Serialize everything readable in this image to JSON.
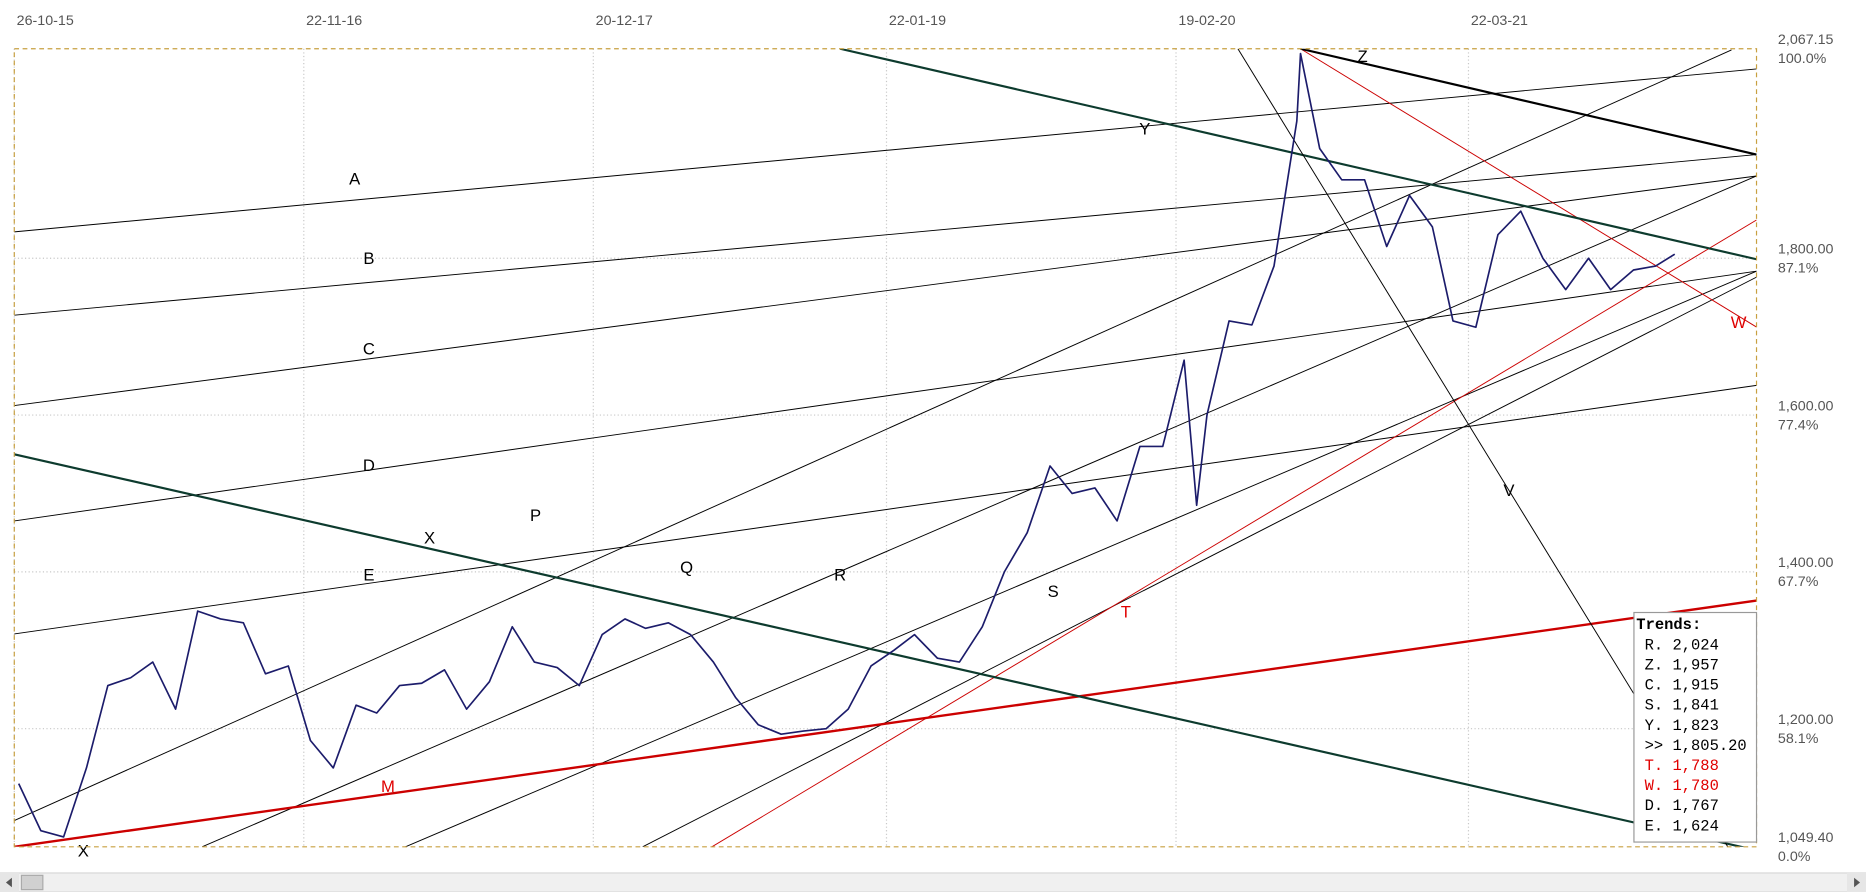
{
  "chart_data": {
    "type": "line",
    "xlim": [
      "26-10-15",
      "17-04-22"
    ],
    "xticks": [
      "26-10-15",
      "22-11-16",
      "20-12-17",
      "22-01-19",
      "19-02-20",
      "22-03-21"
    ],
    "ylim": [
      1049.4,
      2067.15
    ],
    "yticks": [
      {
        "value": 2067.15,
        "label": "2,067.15"
      },
      {
        "value": 1800,
        "label": "1,800.00"
      },
      {
        "value": 1600,
        "label": "1,600.00"
      },
      {
        "value": 1400,
        "label": "1,400.00"
      },
      {
        "value": 1200,
        "label": "1,200.00"
      },
      {
        "value": 1049.4,
        "label": "1,049.40"
      }
    ],
    "ytick_percents": [
      "100.0%",
      "87.1%",
      "77.4%",
      "67.7%",
      "58.1%",
      "0.0%"
    ],
    "grid": true,
    "x": [
      "01-11-15",
      "01-12-15",
      "01-01-16",
      "01-02-16",
      "01-03-16",
      "01-04-16",
      "01-05-16",
      "01-06-16",
      "01-07-16",
      "01-08-16",
      "01-09-16",
      "01-10-16",
      "01-11-16",
      "01-12-16",
      "01-01-17",
      "01-02-17",
      "01-03-17",
      "01-04-17",
      "01-05-17",
      "01-06-17",
      "01-07-17",
      "01-08-17",
      "01-09-17",
      "01-10-17",
      "01-11-17",
      "01-12-17",
      "01-01-18",
      "01-02-18",
      "01-03-18",
      "01-04-18",
      "01-05-18",
      "01-06-18",
      "01-07-18",
      "01-08-18",
      "01-09-18",
      "01-10-18",
      "01-11-18",
      "01-12-18",
      "01-01-19",
      "01-02-19",
      "01-03-19",
      "01-04-19",
      "01-05-19",
      "01-06-19",
      "01-07-19",
      "01-08-19",
      "01-09-19",
      "01-10-19",
      "01-11-19",
      "01-12-19",
      "01-01-20",
      "01-02-20",
      "01-03-20",
      "18-03-20",
      "01-04-20",
      "01-05-20",
      "01-06-20",
      "01-07-20",
      "01-08-20",
      "06-08-20",
      "01-09-20",
      "01-10-20",
      "01-11-20",
      "01-12-20",
      "01-01-21",
      "01-02-21",
      "01-03-21",
      "01-04-21",
      "01-05-21",
      "01-06-21",
      "01-07-21",
      "01-08-21",
      "01-09-21",
      "01-10-21",
      "01-11-21",
      "01-12-21",
      "27-12-21"
    ],
    "series": [
      {
        "color": "#1c1c6b",
        "values": [
          1130,
          1070,
          1062,
          1150,
          1255,
          1265,
          1285,
          1225,
          1350,
          1340,
          1335,
          1270,
          1280,
          1185,
          1150,
          1230,
          1220,
          1255,
          1258,
          1275,
          1225,
          1260,
          1330,
          1285,
          1278,
          1255,
          1320,
          1340,
          1328,
          1335,
          1320,
          1285,
          1240,
          1205,
          1193,
          1197,
          1200,
          1225,
          1280,
          1300,
          1320,
          1290,
          1285,
          1330,
          1400,
          1450,
          1535,
          1500,
          1507,
          1465,
          1560,
          1560,
          1670,
          1485,
          1600,
          1720,
          1715,
          1790,
          1975,
          2061,
          1940,
          1900,
          1900,
          1815,
          1880,
          1840,
          1720,
          1712,
          1830,
          1860,
          1800,
          1760,
          1800,
          1760,
          1785,
          1790,
          1805.2
        ]
      }
    ],
    "trendlines": [
      {
        "label": "A",
        "color": "#000000",
        "width": 0.8,
        "from": [
          "26-10-15",
          1833.6
        ],
        "to": [
          "17-04-22",
          2041.4
        ]
      },
      {
        "label": "B",
        "color": "#000000",
        "width": 0.8,
        "from": [
          "26-10-15",
          1727.4
        ],
        "to": [
          "17-04-22",
          1932.2
        ]
      },
      {
        "label": "C",
        "color": "#000000",
        "width": 0.8,
        "from": [
          "26-10-15",
          1612.1
        ],
        "to": [
          "17-04-22",
          1904.9
        ]
      },
      {
        "label": "D",
        "color": "#000000",
        "width": 0.8,
        "from": [
          "26-10-15",
          1465.0
        ],
        "to": [
          "17-04-22",
          1783.5
        ]
      },
      {
        "label": "E",
        "color": "#000000",
        "width": 0.8,
        "from": [
          "26-10-15",
          1320.9
        ],
        "to": [
          "17-04-22",
          1637.9
        ]
      },
      {
        "label": "P",
        "color": "#000000",
        "width": 0.8,
        "from": [
          "26-10-15",
          1082.8
        ],
        "to": [
          "14-03-22",
          2065.6
        ]
      },
      {
        "label": "Q",
        "color": "#000000",
        "width": 0.8,
        "from": [
          "07-07-16",
          1049.4
        ],
        "to": [
          "17-04-22",
          1904.9
        ]
      },
      {
        "label": "R",
        "color": "#000000",
        "width": 0.8,
        "from": [
          "09-04-17",
          1049.4
        ],
        "to": [
          "17-04-22",
          1783.5
        ]
      },
      {
        "label": "S",
        "color": "#000000",
        "width": 0.8,
        "from": [
          "25-02-18",
          1049.4
        ],
        "to": [
          "17-04-22",
          1775.9
        ]
      },
      {
        "label": "T",
        "color": "#cc0000",
        "width": 0.8,
        "from": [
          "30-05-18",
          1049.4
        ],
        "to": [
          "17-04-22",
          1848.8
        ]
      },
      {
        "label": "M",
        "color": "#cc0000",
        "width": 2,
        "from": [
          "26-10-15",
          1049.4
        ],
        "to": [
          "17-04-22",
          1363.4
        ]
      },
      {
        "label": "W",
        "color": "#cc0000",
        "width": 0.8,
        "from": [
          "06-08-20",
          2067.15
        ],
        "to": [
          "17-04-22",
          1712.2
        ]
      },
      {
        "label": "X",
        "color": "#0d3b2e",
        "width": 1.8,
        "from": [
          "26-10-15",
          1550.0
        ],
        "to": [
          "17-04-22",
          1044.9
        ]
      },
      {
        "label": "Y",
        "color": "#0d3b2e",
        "width": 1.8,
        "from": [
          "20-11-18",
          2067.15
        ],
        "to": [
          "17-04-22",
          1798.7
        ]
      },
      {
        "label": "Z",
        "color": "#000000",
        "width": 1.8,
        "from": [
          "06-08-20",
          2067.15
        ],
        "to": [
          "17-04-22",
          1932.2
        ]
      },
      {
        "label": "V",
        "color": "#000000",
        "width": 0.8,
        "from": [
          "13-05-20",
          2067.15
        ],
        "to": [
          "09-03-22",
          1049.4
        ]
      }
    ],
    "trends_box": {
      "title": "Trends:",
      "rows": [
        {
          "text": "R. 2,024",
          "color": "#000000"
        },
        {
          "text": "Z. 1,957",
          "color": "#000000"
        },
        {
          "text": "C. 1,915",
          "color": "#000000"
        },
        {
          "text": "S. 1,841",
          "color": "#000000"
        },
        {
          "text": "Y. 1,823",
          "color": "#000000"
        },
        {
          "text": ">> 1,805.20",
          "color": "#000000"
        },
        {
          "text": "T. 1,788",
          "color": "#e00000"
        },
        {
          "text": "W. 1,780",
          "color": "#e00000"
        },
        {
          "text": "D. 1,767",
          "color": "#000000"
        },
        {
          "text": "E. 1,624",
          "color": "#000000"
        }
      ]
    }
  }
}
